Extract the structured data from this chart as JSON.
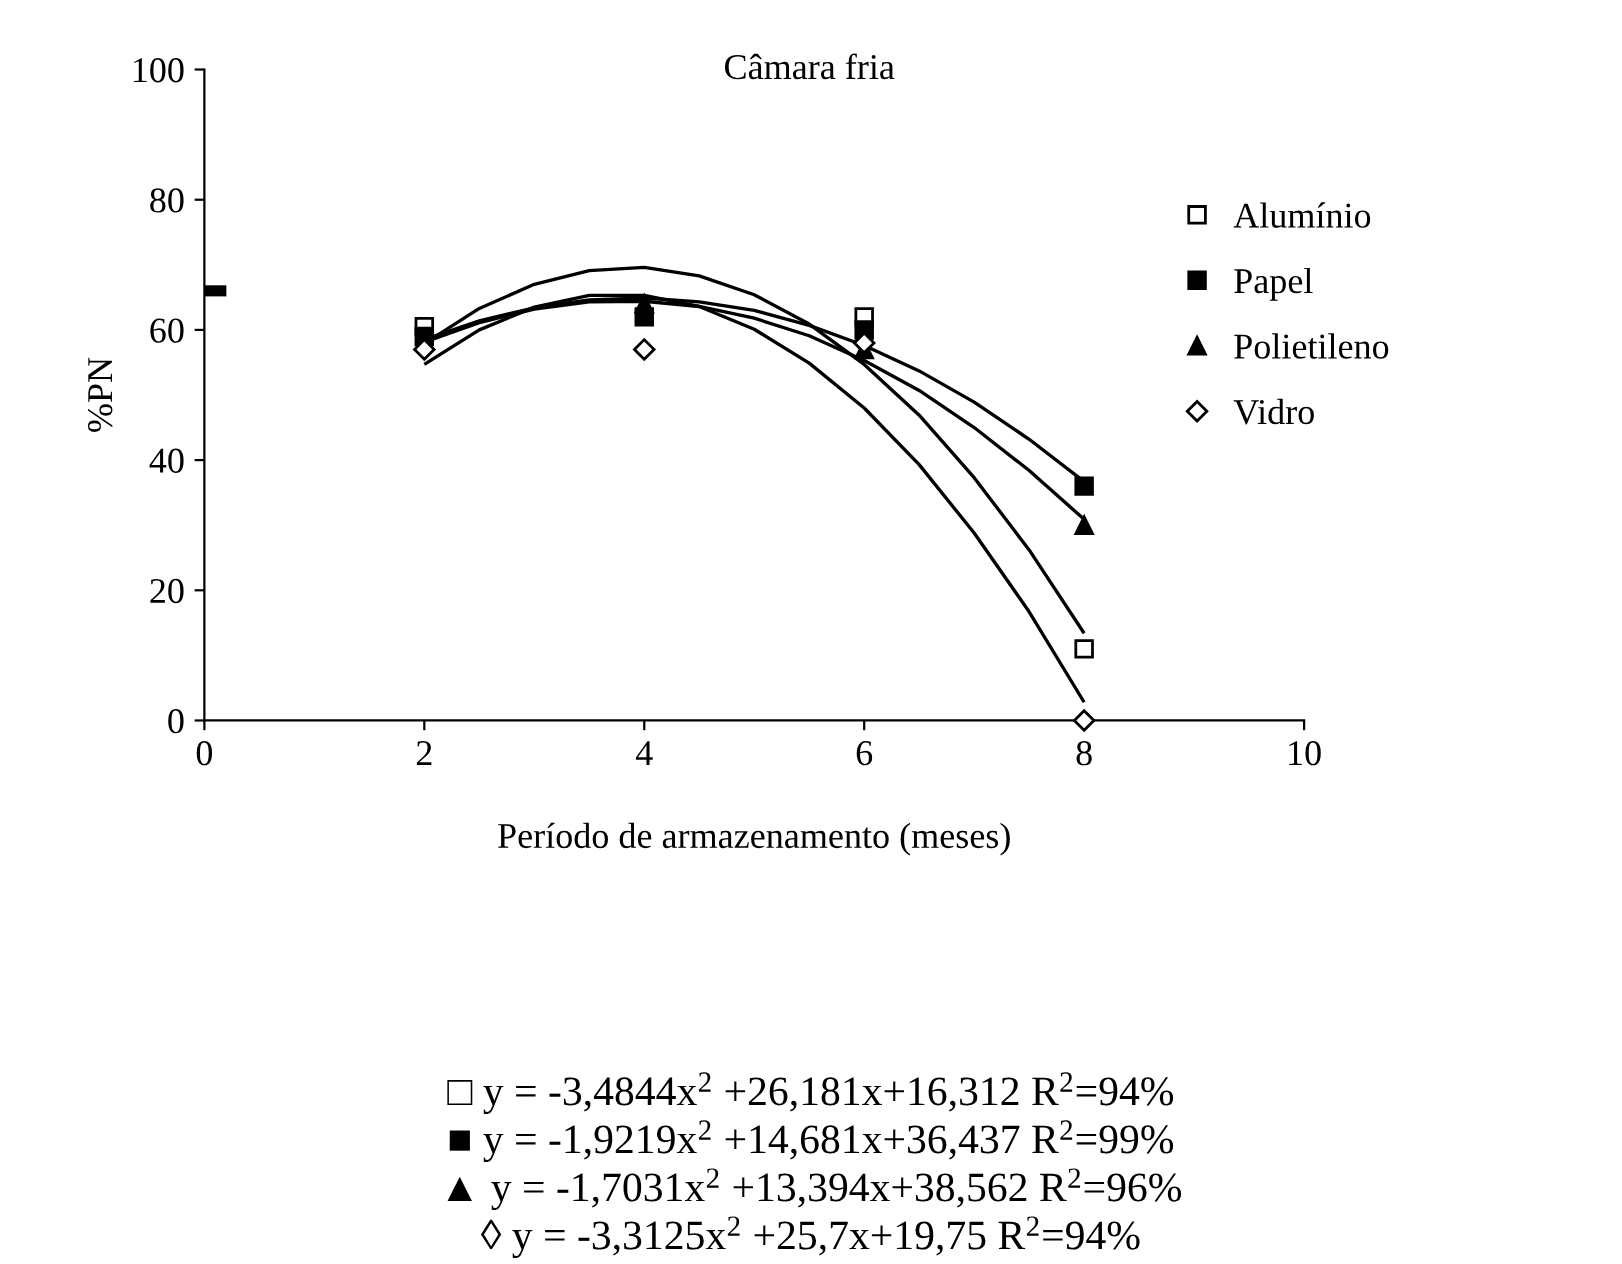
{
  "chart_data": {
    "type": "scatter",
    "title": "Câmara fria",
    "xlabel": "Período de armazenamento (meses)",
    "ylabel": "%PN",
    "xlim": [
      0,
      10
    ],
    "xticks": [
      0,
      2,
      4,
      6,
      8,
      10
    ],
    "ylim": [
      0,
      100
    ],
    "yticks": [
      0,
      20,
      40,
      60,
      80,
      100
    ],
    "grid": false,
    "legend": "right",
    "series": [
      {
        "name": "Alumínio",
        "marker": "square",
        "color": "#ffffff",
        "x": [
          2,
          6,
          8
        ],
        "values": [
          60.5,
          62,
          11
        ]
      },
      {
        "name": "Papel",
        "marker": "square",
        "color": "#000000",
        "x": [
          2,
          4,
          6,
          8
        ],
        "values": [
          59,
          62,
          60,
          36
        ]
      },
      {
        "name": "Polietileno",
        "marker": "triangle",
        "color": "#000000",
        "x": [
          4,
          6,
          8
        ],
        "values": [
          64,
          57,
          30
        ]
      },
      {
        "name": "Vidro",
        "marker": "diamond",
        "color": "#ffffff",
        "x": [
          2,
          4,
          6,
          8
        ],
        "values": [
          57,
          57,
          58,
          0
        ]
      },
      {
        "type": "line",
        "color": "#000000",
        "x": [
          0,
          0.2
        ],
        "values": [
          66,
          66
        ]
      },
      {
        "type": "line",
        "color": "#000000",
        "x": [
          2,
          2.5,
          3,
          3.5,
          4,
          4.5,
          5,
          5.5,
          6,
          6.5,
          7,
          7.5,
          8
        ],
        "values": [
          54.7,
          60.0,
          63.5,
          65.3,
          65.3,
          63.6,
          60.1,
          54.9,
          48.0,
          39.3,
          28.8,
          16.7,
          2.8
        ]
      },
      {
        "type": "line",
        "color": "#000000",
        "x": [
          2,
          2.5,
          3,
          3.5,
          4,
          4.5,
          5,
          5.5,
          6,
          6.5,
          7,
          7.5,
          8
        ],
        "values": [
          58.1,
          61.1,
          63.2,
          64.3,
          64.4,
          63.6,
          61.8,
          59.1,
          55.3,
          50.7,
          45.0,
          38.4,
          30.9
        ]
      },
      {
        "type": "line",
        "color": "#000000",
        "x": [
          2,
          2.5,
          3,
          3.5,
          4,
          4.5,
          5,
          5.5,
          6,
          6.5,
          7,
          7.5,
          8
        ],
        "values": [
          58.5,
          61.4,
          63.4,
          64.6,
          64.9,
          64.3,
          63.0,
          60.7,
          57.6,
          53.7,
          48.9,
          43.2,
          36.7
        ]
      },
      {
        "type": "line",
        "color": "#000000",
        "x": [
          2,
          2.5,
          3,
          3.5,
          4,
          4.5,
          5,
          5.5,
          6,
          6.5,
          7,
          7.5,
          8
        ],
        "values": [
          57.9,
          63.3,
          67.0,
          69.1,
          69.6,
          68.3,
          65.4,
          60.9,
          54.7,
          46.9,
          37.3,
          26.2,
          13.4
        ]
      }
    ],
    "annotations": [
      "□ y = -3,4844x$^{2}$ +26,181x+16,312 R$^{2}$=94%",
      "■ y = -1,9219x$^{2}$ +14,681x+36,437 R$^{2}$=99%",
      "▲ y = -1,7031x$^{2}$ +13,394x+38,562 R$^{2}$=96%",
      "◊ y = -3,3125x$^{2}$ +25,7x+19,75 R$^{2}$=94%"
    ]
  }
}
